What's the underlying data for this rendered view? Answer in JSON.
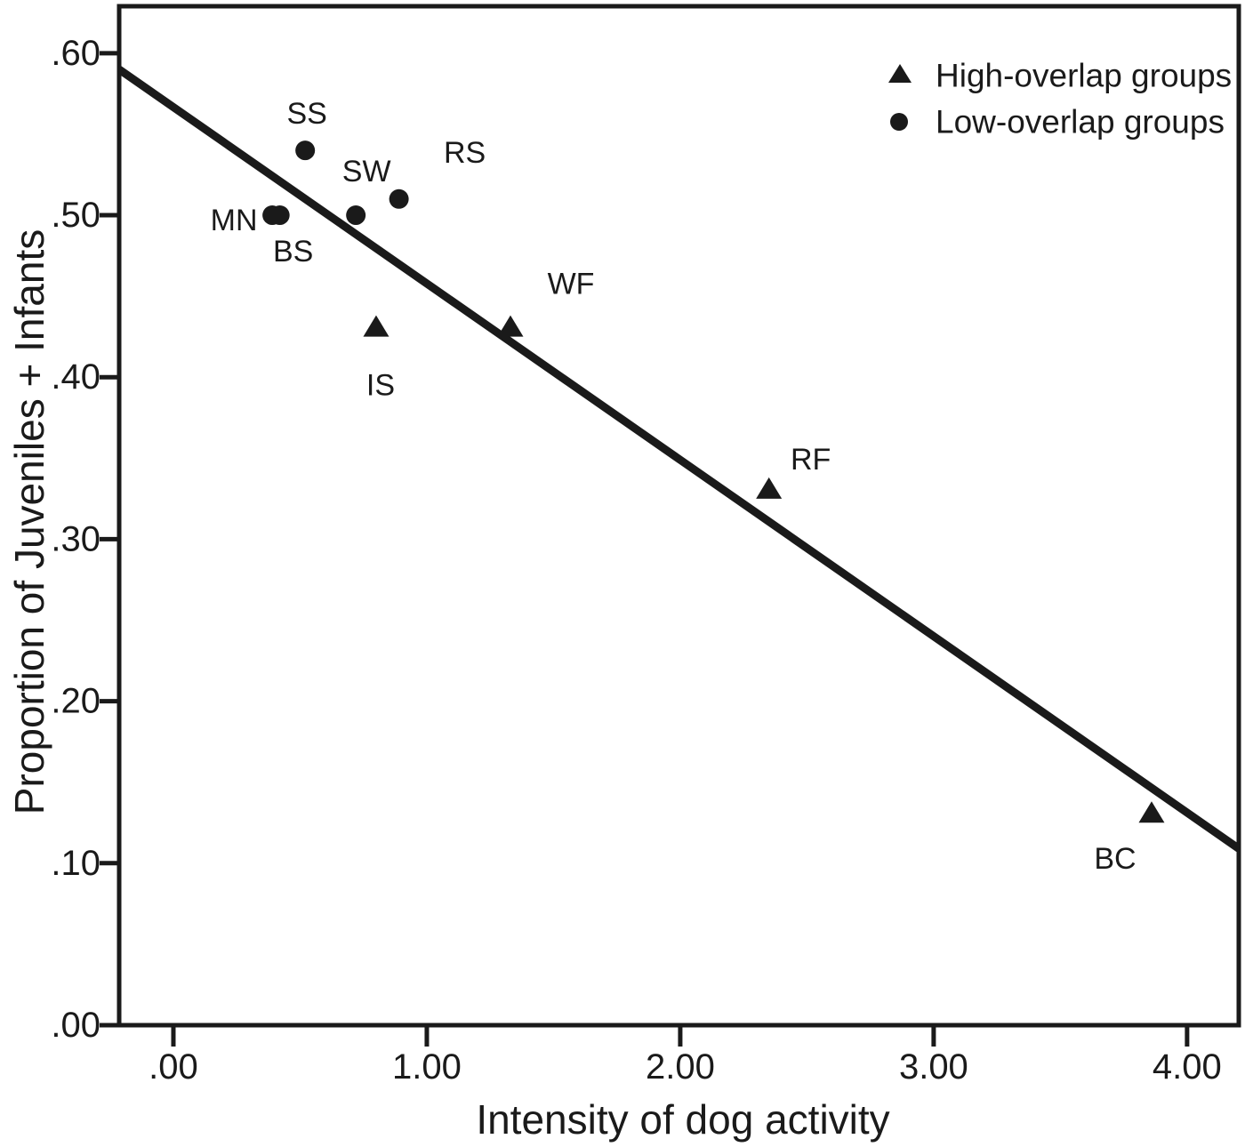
{
  "chart_data": {
    "type": "scatter",
    "title": "",
    "xlabel": "Intensity of dog activity",
    "ylabel": "Proportion of Juveniles + Infants",
    "xlim": [
      -0.214,
      4.204
    ],
    "ylim": [
      0,
      0.629
    ],
    "grid": false,
    "color": "#1a1a1a",
    "x_axis": {
      "ticks": [
        {
          "value": 0,
          "label": ".00"
        },
        {
          "value": 1,
          "label": "1.00"
        },
        {
          "value": 2,
          "label": "2.00"
        },
        {
          "value": 3,
          "label": "3.00"
        },
        {
          "value": 4,
          "label": "4.00"
        }
      ]
    },
    "y_axis": {
      "ticks": [
        {
          "value": 0.0,
          "label": ".00"
        },
        {
          "value": 0.1,
          "label": ".10"
        },
        {
          "value": 0.2,
          "label": ".20"
        },
        {
          "value": 0.3,
          "label": ".30"
        },
        {
          "value": 0.4,
          "label": ".40"
        },
        {
          "value": 0.5,
          "label": ".50"
        },
        {
          "value": 0.6,
          "label": ".60"
        }
      ]
    },
    "legend": {
      "position": "top-right",
      "entries": [
        {
          "marker": "triangle",
          "label": "High-overlap groups"
        },
        {
          "marker": "circle",
          "label": "Low-overlap groups"
        }
      ]
    },
    "series": [
      {
        "name": "High-overlap groups",
        "marker": "triangle",
        "points": [
          {
            "label": "IS",
            "x": 0.8,
            "y": 0.43,
            "label_dx": 5,
            "label_dy": 64
          },
          {
            "label": "WF",
            "x": 1.33,
            "y": 0.43,
            "label_dx": 68,
            "label_dy": -50
          },
          {
            "label": "RF",
            "x": 2.35,
            "y": 0.33,
            "label_dx": 47,
            "label_dy": -35
          },
          {
            "label": "BC",
            "x": 3.86,
            "y": 0.13,
            "label_dx": -41,
            "label_dy": 50
          }
        ]
      },
      {
        "name": "Low-overlap groups",
        "marker": "circle",
        "points": [
          {
            "label": "SS",
            "x": 0.52,
            "y": 0.54,
            "label_dx": 2,
            "label_dy": -41
          },
          {
            "label": "SW",
            "x": 0.72,
            "y": 0.5,
            "label_dx": 12,
            "label_dy": -49
          },
          {
            "label": "RS",
            "x": 0.89,
            "y": 0.51,
            "label_dx": 74,
            "label_dy": -52
          },
          {
            "label": "MN",
            "x": 0.39,
            "y": 0.5,
            "label_dx": -43,
            "label_dy": 6
          },
          {
            "label": "BS",
            "x": 0.42,
            "y": 0.5,
            "label_dx": 15,
            "label_dy": 41
          }
        ]
      }
    ],
    "trend_line": {
      "x1": -0.214,
      "y1": 0.59,
      "x2": 4.204,
      "y2": 0.109
    }
  }
}
